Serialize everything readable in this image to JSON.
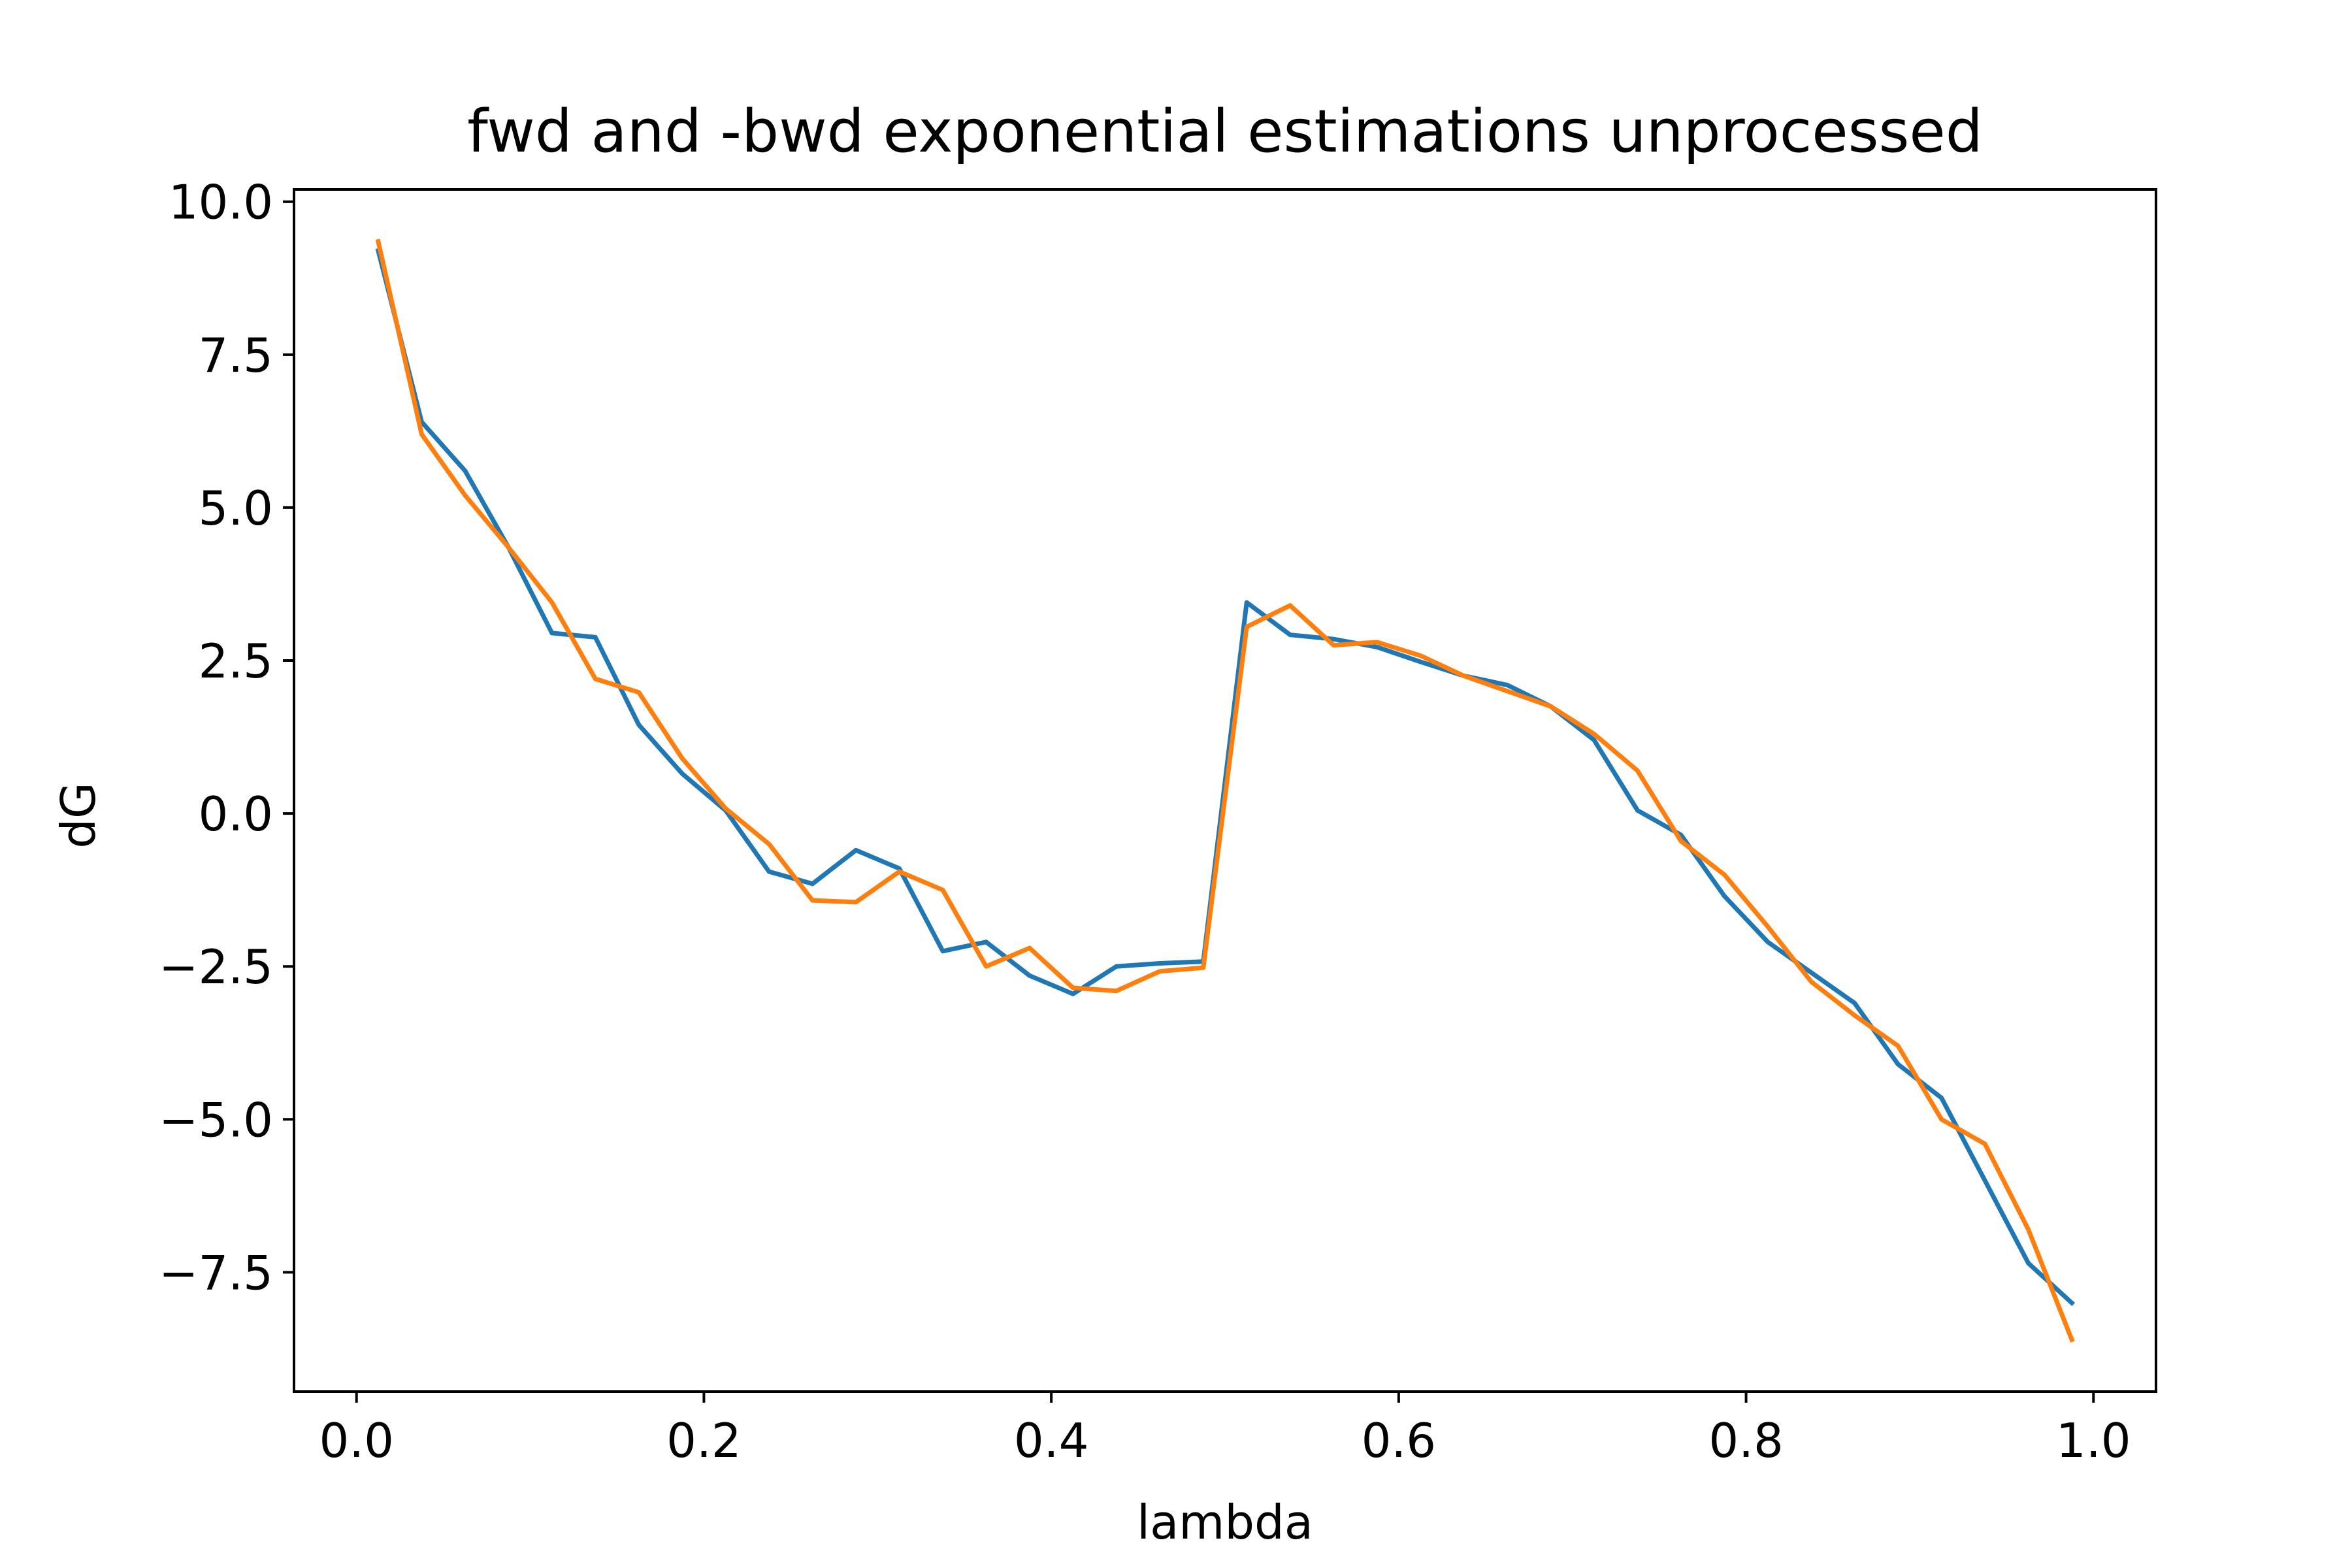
{
  "chart_data": {
    "type": "line",
    "title": "fwd and -bwd exponential estimations unprocessed",
    "xlabel": "lambda",
    "ylabel": "dG",
    "xlim": [
      -0.036,
      1.036
    ],
    "ylim": [
      -9.45,
      10.2
    ],
    "grid": false,
    "legend": "none",
    "xticks": [
      0.0,
      0.2,
      0.4,
      0.6,
      0.8,
      1.0
    ],
    "xtick_labels": [
      "0.0",
      "0.2",
      "0.4",
      "0.6",
      "0.8",
      "1.0"
    ],
    "yticks": [
      10.0,
      7.5,
      5.0,
      2.5,
      0.0,
      -2.5,
      -5.0,
      -7.5
    ],
    "ytick_labels": [
      "10.0",
      "7.5",
      "5.0",
      "2.5",
      "0.0",
      "−2.5",
      "−5.0",
      "−7.5"
    ],
    "x": [
      0.0125,
      0.0375,
      0.0625,
      0.0875,
      0.1125,
      0.1375,
      0.1625,
      0.1875,
      0.2125,
      0.2375,
      0.2625,
      0.2875,
      0.3125,
      0.3375,
      0.3625,
      0.3875,
      0.4125,
      0.4375,
      0.4625,
      0.4875,
      0.5125,
      0.5375,
      0.5625,
      0.5875,
      0.6125,
      0.6375,
      0.6625,
      0.6875,
      0.7125,
      0.7375,
      0.7625,
      0.7875,
      0.8125,
      0.8375,
      0.8625,
      0.8875,
      0.9125,
      0.9375,
      0.9625,
      0.9875
    ],
    "series": [
      {
        "color": "#1f77b4",
        "values": [
          9.2,
          6.4,
          5.6,
          4.35,
          2.95,
          2.88,
          1.45,
          0.65,
          0.05,
          -0.95,
          -1.15,
          -0.6,
          -0.9,
          -2.25,
          -2.1,
          -2.65,
          -2.95,
          -2.5,
          -2.45,
          -2.42,
          3.45,
          2.92,
          2.85,
          2.72,
          2.48,
          2.25,
          2.1,
          1.75,
          1.2,
          0.05,
          -0.35,
          -1.35,
          -2.1,
          -2.6,
          -3.1,
          -4.1,
          -4.65,
          -6.0,
          -7.35,
          -8.0
        ]
      },
      {
        "color": "#ff7f0e",
        "values": [
          9.35,
          6.2,
          5.2,
          4.35,
          3.45,
          2.2,
          1.98,
          0.9,
          0.08,
          -0.5,
          -1.42,
          -1.45,
          -0.95,
          -1.25,
          -2.5,
          -2.2,
          -2.85,
          -2.9,
          -2.58,
          -2.52,
          3.05,
          3.4,
          2.75,
          2.8,
          2.58,
          2.25,
          2.0,
          1.75,
          1.3,
          0.7,
          -0.45,
          -1.0,
          -1.85,
          -2.75,
          -3.3,
          -3.8,
          -5.0,
          -5.4,
          -6.8,
          -8.6
        ]
      }
    ]
  }
}
